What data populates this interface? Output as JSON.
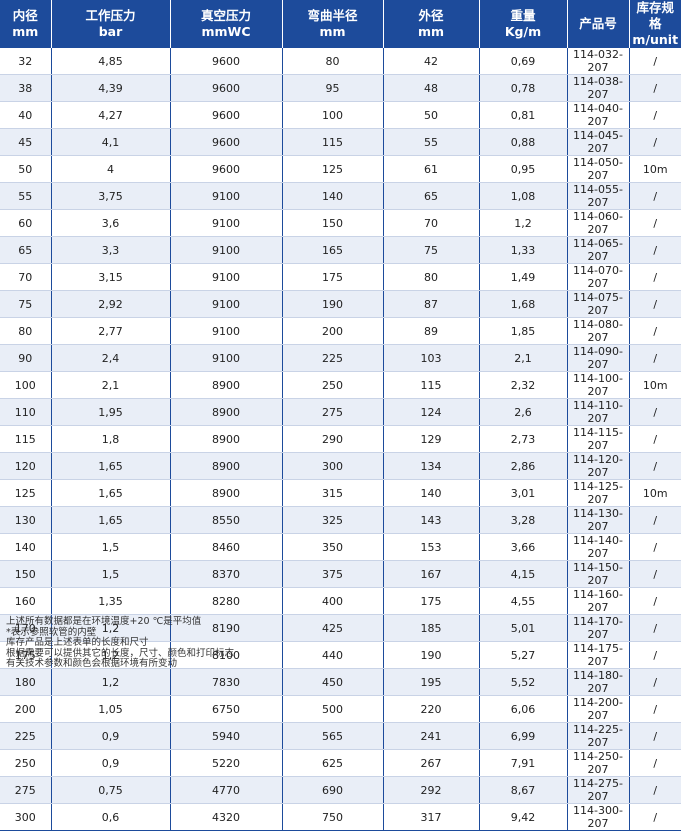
{
  "headers": [
    {
      "zh": "内径",
      "unit": "mm"
    },
    {
      "zh": "工作压力",
      "unit": "bar"
    },
    {
      "zh": "真空压力",
      "unit": "mmWC"
    },
    {
      "zh": "弯曲半径",
      "unit": "mm"
    },
    {
      "zh": "外径",
      "unit": "mm"
    },
    {
      "zh": "重量",
      "unit": "Kg/m"
    },
    {
      "zh": "产品号",
      "unit": ""
    },
    {
      "zh": "库存规格",
      "unit": "m/unit"
    }
  ],
  "rows": [
    [
      "32",
      "4,85",
      "9600",
      "80",
      "42",
      "0,69",
      "114-032-207",
      "/"
    ],
    [
      "38",
      "4,39",
      "9600",
      "95",
      "48",
      "0,78",
      "114-038-207",
      "/"
    ],
    [
      "40",
      "4,27",
      "9600",
      "100",
      "50",
      "0,81",
      "114-040-207",
      "/"
    ],
    [
      "45",
      "4,1",
      "9600",
      "115",
      "55",
      "0,88",
      "114-045-207",
      "/"
    ],
    [
      "50",
      "4",
      "9600",
      "125",
      "61",
      "0,95",
      "114-050-207",
      "10m"
    ],
    [
      "55",
      "3,75",
      "9100",
      "140",
      "65",
      "1,08",
      "114-055-207",
      "/"
    ],
    [
      "60",
      "3,6",
      "9100",
      "150",
      "70",
      "1,2",
      "114-060-207",
      "/"
    ],
    [
      "65",
      "3,3",
      "9100",
      "165",
      "75",
      "1,33",
      "114-065-207",
      "/"
    ],
    [
      "70",
      "3,15",
      "9100",
      "175",
      "80",
      "1,49",
      "114-070-207",
      "/"
    ],
    [
      "75",
      "2,92",
      "9100",
      "190",
      "87",
      "1,68",
      "114-075-207",
      "/"
    ],
    [
      "80",
      "2,77",
      "9100",
      "200",
      "89",
      "1,85",
      "114-080-207",
      "/"
    ],
    [
      "90",
      "2,4",
      "9100",
      "225",
      "103",
      "2,1",
      "114-090-207",
      "/"
    ],
    [
      "100",
      "2,1",
      "8900",
      "250",
      "115",
      "2,32",
      "114-100-207",
      "10m"
    ],
    [
      "110",
      "1,95",
      "8900",
      "275",
      "124",
      "2,6",
      "114-110-207",
      "/"
    ],
    [
      "115",
      "1,8",
      "8900",
      "290",
      "129",
      "2,73",
      "114-115-207",
      "/"
    ],
    [
      "120",
      "1,65",
      "8900",
      "300",
      "134",
      "2,86",
      "114-120-207",
      "/"
    ],
    [
      "125",
      "1,65",
      "8900",
      "315",
      "140",
      "3,01",
      "114-125-207",
      "10m"
    ],
    [
      "130",
      "1,65",
      "8550",
      "325",
      "143",
      "3,28",
      "114-130-207",
      "/"
    ],
    [
      "140",
      "1,5",
      "8460",
      "350",
      "153",
      "3,66",
      "114-140-207",
      "/"
    ],
    [
      "150",
      "1,5",
      "8370",
      "375",
      "167",
      "4,15",
      "114-150-207",
      "/"
    ],
    [
      "160",
      "1,35",
      "8280",
      "400",
      "175",
      "4,55",
      "114-160-207",
      "/"
    ],
    [
      "170",
      "1,2",
      "8190",
      "425",
      "185",
      "5,01",
      "114-170-207",
      "/"
    ],
    [
      "175",
      "1,2",
      "8100",
      "440",
      "190",
      "5,27",
      "114-175-207",
      "/"
    ],
    [
      "180",
      "1,2",
      "7830",
      "450",
      "195",
      "5,52",
      "114-180-207",
      "/"
    ],
    [
      "200",
      "1,05",
      "6750",
      "500",
      "220",
      "6,06",
      "114-200-207",
      "/"
    ],
    [
      "225",
      "0,9",
      "5940",
      "565",
      "241",
      "6,99",
      "114-225-207",
      "/"
    ],
    [
      "250",
      "0,9",
      "5220",
      "625",
      "267",
      "7,91",
      "114-250-207",
      "/"
    ],
    [
      "275",
      "0,75",
      "4770",
      "690",
      "292",
      "8,67",
      "114-275-207",
      "/"
    ],
    [
      "300",
      "0,6",
      "4320",
      "750",
      "317",
      "9,42",
      "114-300-207",
      "/"
    ]
  ],
  "notes": [
    "上述所有数据都是在环境温度+20 ℃是平均值",
    "*表示参照软管的内壁",
    "库存产品是上述表单的长度和尺寸",
    "根据需要可以提供其它的长度，尺寸、颜色和打印标志",
    "有关技术参数和颜色会根据环境有所变动"
  ]
}
